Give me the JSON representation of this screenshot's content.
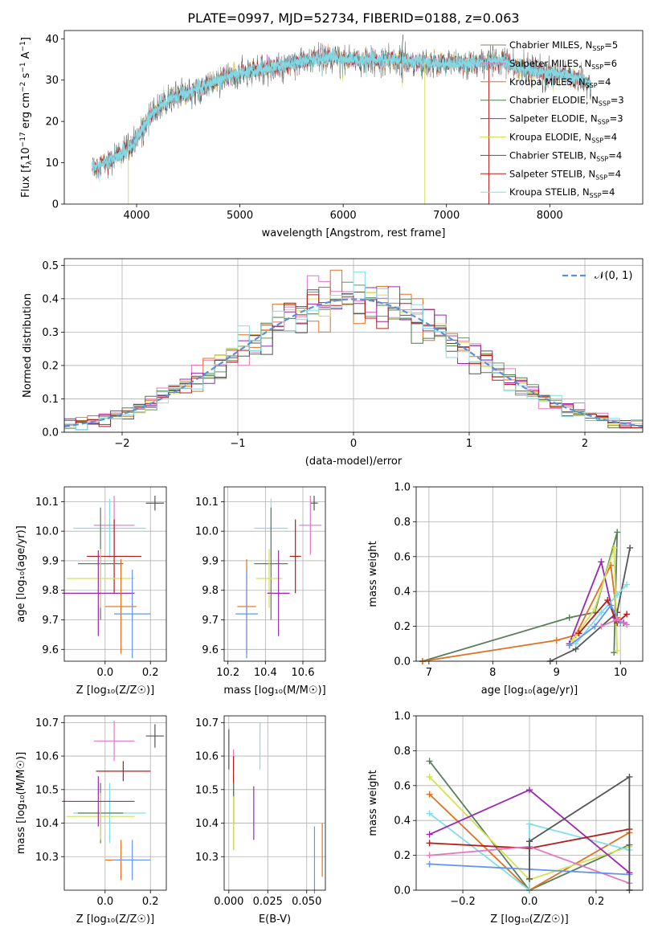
{
  "colors": [
    "#6a8f6a",
    "#e377c2",
    "#e07020",
    "#4c7a4c",
    "#9b27b0",
    "#d4e157",
    "#555555",
    "#b71c1c",
    "#80deea"
  ],
  "err_colors": [
    "#555555",
    "#80deea",
    "#e377c2",
    "#b71c1c",
    "#5a7f5a",
    "#d4e157",
    "#9b27b0",
    "#e07020",
    "#6495ed"
  ],
  "chart_data": [
    {
      "id": "spectrum",
      "type": "line",
      "title": "PLATE=0997, MJD=52734, FIBERID=0188, z=0.063",
      "xlabel": "wavelength [Angstrom, rest frame]",
      "ylabel_parts": [
        "Flux [f",
        "λ",
        "10",
        "−17",
        " erg cm",
        "−2",
        " s",
        "−1",
        " A",
        "−1",
        "]"
      ],
      "xlim": [
        3300,
        8900
      ],
      "ylim": [
        0,
        42
      ],
      "xticks": [
        4000,
        5000,
        6000,
        7000,
        8000
      ],
      "yticks": [
        0,
        10,
        20,
        30,
        40
      ],
      "grid": false,
      "legend_position": "top-right",
      "continuum": [
        [
          3570,
          9
        ],
        [
          3700,
          10
        ],
        [
          3850,
          12
        ],
        [
          3950,
          14
        ],
        [
          4050,
          18
        ],
        [
          4150,
          22
        ],
        [
          4300,
          25
        ],
        [
          4500,
          27
        ],
        [
          4700,
          29
        ],
        [
          4900,
          31
        ],
        [
          5100,
          32
        ],
        [
          5300,
          33
        ],
        [
          5500,
          34
        ],
        [
          5700,
          35
        ],
        [
          5900,
          35.5
        ],
        [
          6100,
          35
        ],
        [
          6300,
          35
        ],
        [
          6500,
          35
        ],
        [
          6700,
          34.5
        ],
        [
          6900,
          34
        ],
        [
          7100,
          34
        ],
        [
          7300,
          34
        ],
        [
          7500,
          35
        ],
        [
          7700,
          33
        ],
        [
          7900,
          32
        ],
        [
          8100,
          31.5
        ],
        [
          8300,
          30
        ],
        [
          8400,
          29
        ]
      ],
      "series": [
        {
          "label": "Chabrier MILES, ",
          "n": "5"
        },
        {
          "label": "Salpeter MILES, ",
          "n": "6"
        },
        {
          "label": "Kroupa MILES, ",
          "n": "4"
        },
        {
          "label": "Chabrier ELODIE, ",
          "n": "3"
        },
        {
          "label": "Salpeter ELODIE, ",
          "n": "3"
        },
        {
          "label": "Kroupa ELODIE, ",
          "n": "4"
        },
        {
          "label": "Chabrier STELIB, ",
          "n": "4"
        },
        {
          "label": "Salpeter STELIB, ",
          "n": "4"
        },
        {
          "label": "Kroupa STELIB, ",
          "n": "4"
        }
      ],
      "nssp_prefix": "N",
      "nssp_sub": "SSP",
      "nssp_eq": "="
    },
    {
      "id": "residuals",
      "type": "bar",
      "xlabel": "(data-model)/error",
      "ylabel": "Normed distribution",
      "xlim": [
        -2.5,
        2.5
      ],
      "ylim": [
        0,
        0.52
      ],
      "xticks": [
        -2,
        -1,
        0,
        1,
        2
      ],
      "xtick_labels": [
        "−2",
        "−1",
        "0",
        "1",
        "2"
      ],
      "yticks": [
        0,
        0.1,
        0.2,
        0.3,
        0.4,
        0.5
      ],
      "ytick_labels": [
        "0.0",
        "0.1",
        "0.2",
        "0.3",
        "0.4",
        "0.5"
      ],
      "grid": true,
      "bin_width": 0.1,
      "gaussian_label": "𝒩(0, 1)",
      "legend_position": "top-right"
    },
    {
      "id": "age-vs-Z",
      "type": "scatter",
      "xlabel": "Z [log₁₀(Z/Z☉)]",
      "ylabel": "age  [log₁₀(age/yr)]",
      "xlim": [
        -0.18,
        0.27
      ],
      "ylim": [
        9.56,
        10.15
      ],
      "xticks": [
        0.0,
        0.2
      ],
      "xtick_labels": [
        "0.0",
        "0.2"
      ],
      "yticks": [
        9.6,
        9.7,
        9.8,
        9.9,
        10.0,
        10.1
      ],
      "ytick_labels": [
        "9.6",
        "9.7",
        "9.8",
        "9.9",
        "10.0",
        "10.1"
      ],
      "grid": true,
      "points": [
        [
          0.22,
          10.095,
          0.04,
          0.025
        ],
        [
          0.02,
          10.01,
          0.16,
          0.1
        ],
        [
          0.04,
          10.02,
          0.09,
          0.1
        ],
        [
          0.04,
          9.915,
          0.12,
          0.125
        ],
        [
          -0.02,
          9.89,
          0.1,
          0.19
        ],
        [
          -0.02,
          9.84,
          0.15,
          0.1
        ],
        [
          -0.03,
          9.79,
          0.16,
          0.145
        ],
        [
          0.07,
          9.745,
          0.07,
          0.16
        ],
        [
          0.12,
          9.72,
          0.08,
          0.15
        ]
      ]
    },
    {
      "id": "age-vs-mass",
      "type": "scatter",
      "xlabel": "mass [log₁₀(M/M☉)]",
      "ylabel": "",
      "xlim": [
        10.18,
        10.72
      ],
      "ylim": [
        9.56,
        10.15
      ],
      "xticks": [
        10.2,
        10.4,
        10.6
      ],
      "xtick_labels": [
        "10.2",
        "10.4",
        "10.6"
      ],
      "yticks": [
        9.6,
        9.7,
        9.8,
        9.9,
        10.0,
        10.1
      ],
      "ytick_labels": [
        "9.6",
        "9.7",
        "9.8",
        "9.9",
        "10.0",
        "10.1"
      ],
      "grid": true,
      "points": [
        [
          10.66,
          10.095,
          0.02,
          0.025
        ],
        [
          10.43,
          10.01,
          0.09,
          0.1
        ],
        [
          10.64,
          10.02,
          0.06,
          0.1
        ],
        [
          10.56,
          9.915,
          0.03,
          0.125
        ],
        [
          10.43,
          9.89,
          0.09,
          0.19
        ],
        [
          10.42,
          9.84,
          0.07,
          0.1
        ],
        [
          10.47,
          9.79,
          0.06,
          0.145
        ],
        [
          10.3,
          9.745,
          0.05,
          0.16
        ],
        [
          10.3,
          9.72,
          0.06,
          0.15
        ]
      ]
    },
    {
      "id": "weight-vs-age",
      "type": "line",
      "xlabel": "age  [log₁₀(age/yr)]",
      "ylabel": "mass weight",
      "xlim": [
        6.8,
        10.35
      ],
      "ylim": [
        0,
        1
      ],
      "xticks": [
        7,
        8,
        9,
        10
      ],
      "xtick_labels": [
        "7",
        "8",
        "9",
        "10"
      ],
      "yticks": [
        0,
        0.2,
        0.4,
        0.6,
        0.8,
        1.0
      ],
      "ytick_labels": [
        "0.0",
        "0.2",
        "0.4",
        "0.6",
        "0.8",
        "1.0"
      ],
      "grid": true,
      "series": [
        {
          "color": "#5a7f5a",
          "points": [
            [
              6.9,
              0.0
            ],
            [
              9.2,
              0.25
            ],
            [
              9.6,
              0.28
            ],
            [
              9.95,
              0.74
            ],
            [
              9.9,
              0.05
            ]
          ]
        },
        {
          "color": "#e07020",
          "points": [
            [
              6.9,
              0.0
            ],
            [
              9.0,
              0.12
            ],
            [
              9.3,
              0.15
            ],
            [
              9.85,
              0.55
            ],
            [
              9.95,
              0.25
            ]
          ]
        },
        {
          "color": "#555555",
          "points": [
            [
              8.9,
              0.0
            ],
            [
              9.3,
              0.07
            ],
            [
              9.95,
              0.28
            ],
            [
              10.15,
              0.65
            ]
          ]
        },
        {
          "color": "#9b27b0",
          "points": [
            [
              9.2,
              0.1
            ],
            [
              9.7,
              0.57
            ],
            [
              9.9,
              0.25
            ],
            [
              10.05,
              0.22
            ]
          ]
        },
        {
          "color": "#d4e157",
          "points": [
            [
              9.25,
              0.12
            ],
            [
              9.6,
              0.3
            ],
            [
              9.9,
              0.65
            ],
            [
              9.95,
              0.06
            ]
          ]
        },
        {
          "color": "#80deea",
          "points": [
            [
              9.3,
              0.1
            ],
            [
              9.7,
              0.28
            ],
            [
              9.95,
              0.38
            ],
            [
              10.1,
              0.44
            ]
          ]
        },
        {
          "color": "#b71c1c",
          "points": [
            [
              9.35,
              0.16
            ],
            [
              9.8,
              0.35
            ],
            [
              9.95,
              0.22
            ],
            [
              10.1,
              0.27
            ]
          ]
        },
        {
          "color": "#6495ed",
          "points": [
            [
              9.2,
              0.09
            ],
            [
              9.6,
              0.2
            ],
            [
              9.85,
              0.32
            ],
            [
              10.0,
              0.22
            ]
          ]
        },
        {
          "color": "#e377c2",
          "points": [
            [
              9.7,
              0.2
            ],
            [
              9.95,
              0.24
            ],
            [
              10.1,
              0.21
            ]
          ]
        }
      ]
    },
    {
      "id": "mass-vs-Z",
      "type": "scatter",
      "xlabel": "Z [log₁₀(Z/Z☉)]",
      "ylabel": "mass [log₁₀(M/M☉)]",
      "xlim": [
        -0.18,
        0.27
      ],
      "ylim": [
        10.2,
        10.72
      ],
      "xticks": [
        0.0,
        0.2
      ],
      "xtick_labels": [
        "0.0",
        "0.2"
      ],
      "yticks": [
        10.3,
        10.4,
        10.5,
        10.6,
        10.7
      ],
      "ytick_labels": [
        "10.3",
        "10.4",
        "10.5",
        "10.6",
        "10.7"
      ],
      "grid": true,
      "points": [
        [
          0.22,
          10.66,
          0.04,
          0.035
        ],
        [
          0.02,
          10.43,
          0.16,
          0.09
        ],
        [
          0.04,
          10.645,
          0.09,
          0.06
        ],
        [
          0.08,
          10.555,
          0.12,
          0.03
        ],
        [
          -0.02,
          10.43,
          0.1,
          0.09
        ],
        [
          -0.02,
          10.42,
          0.15,
          0.07
        ],
        [
          -0.03,
          10.465,
          0.16,
          0.075
        ],
        [
          0.07,
          10.29,
          0.07,
          0.06
        ],
        [
          0.12,
          10.29,
          0.08,
          0.06
        ]
      ]
    },
    {
      "id": "mass-vs-EBV",
      "type": "scatter",
      "xlabel": "E(B-V)",
      "ylabel": "",
      "xlim": [
        -0.003,
        0.062
      ],
      "ylim": [
        10.2,
        10.72
      ],
      "xticks": [
        0.0,
        0.025,
        0.05
      ],
      "xtick_labels": [
        "0.000",
        "0.025",
        "0.050"
      ],
      "yticks": [
        10.3,
        10.4,
        10.5,
        10.6,
        10.7
      ],
      "ytick_labels": [
        "10.3",
        "10.4",
        "10.5",
        "10.6",
        "10.7"
      ],
      "grid": true,
      "points": [
        [
          0.0,
          10.62,
          0,
          0.06
        ],
        [
          0.02,
          10.63,
          0,
          0.07
        ],
        [
          0.003,
          10.55,
          0,
          0.07
        ],
        [
          0.003,
          10.5,
          0,
          0.1
        ],
        [
          0.003,
          10.42,
          0,
          0.1
        ],
        [
          0.003,
          10.4,
          0,
          0.08
        ],
        [
          0.016,
          10.43,
          0,
          0.08
        ],
        [
          0.06,
          10.32,
          0,
          0.08
        ],
        [
          0.055,
          10.29,
          0,
          0.1
        ]
      ]
    },
    {
      "id": "weight-vs-Z",
      "type": "line",
      "xlabel": "Z [log₁₀(Z/Z☉)]",
      "ylabel": "mass weight",
      "xlim": [
        -0.34,
        0.34
      ],
      "ylim": [
        0,
        1
      ],
      "xticks": [
        -0.2,
        0.0,
        0.2
      ],
      "xtick_labels": [
        "−0.2",
        "0.0",
        "0.2"
      ],
      "yticks": [
        0,
        0.2,
        0.4,
        0.6,
        0.8,
        1.0
      ],
      "ytick_labels": [
        "0.0",
        "0.2",
        "0.4",
        "0.6",
        "0.8",
        "1.0"
      ],
      "grid": true,
      "series": [
        {
          "color": "#5a7f5a",
          "points": [
            [
              -0.3,
              0.74
            ],
            [
              0.0,
              0.0
            ],
            [
              0.3,
              0.26
            ]
          ]
        },
        {
          "color": "#e07020",
          "points": [
            [
              -0.3,
              0.55
            ],
            [
              0.0,
              0.0
            ],
            [
              0.3,
              0.33
            ]
          ]
        },
        {
          "color": "#d4e157",
          "points": [
            [
              -0.3,
              0.65
            ],
            [
              0.0,
              0.06
            ],
            [
              0.3,
              0.25
            ]
          ]
        },
        {
          "color": "#80deea",
          "points": [
            [
              -0.3,
              0.44
            ],
            [
              0.0,
              0.0
            ],
            [
              0.0,
              0.38
            ],
            [
              0.3,
              0.23
            ]
          ]
        },
        {
          "color": "#9b27b0",
          "points": [
            [
              -0.3,
              0.32
            ],
            [
              0.0,
              0.575
            ],
            [
              0.3,
              0.1
            ]
          ]
        },
        {
          "color": "#b71c1c",
          "points": [
            [
              -0.3,
              0.27
            ],
            [
              0.0,
              0.24
            ],
            [
              0.3,
              0.35
            ]
          ]
        },
        {
          "color": "#e377c2",
          "points": [
            [
              -0.3,
              0.2
            ],
            [
              0.0,
              0.25
            ],
            [
              0.3,
              0.04
            ]
          ]
        },
        {
          "color": "#6495ed",
          "points": [
            [
              -0.3,
              0.15
            ],
            [
              0.0,
              0.12
            ],
            [
              0.3,
              0.09
            ]
          ]
        },
        {
          "color": "#555555",
          "points": [
            [
              0.0,
              0.065
            ],
            [
              0.0,
              0.28
            ],
            [
              0.3,
              0.65
            ],
            [
              0.3,
              0.0
            ]
          ]
        }
      ]
    }
  ]
}
